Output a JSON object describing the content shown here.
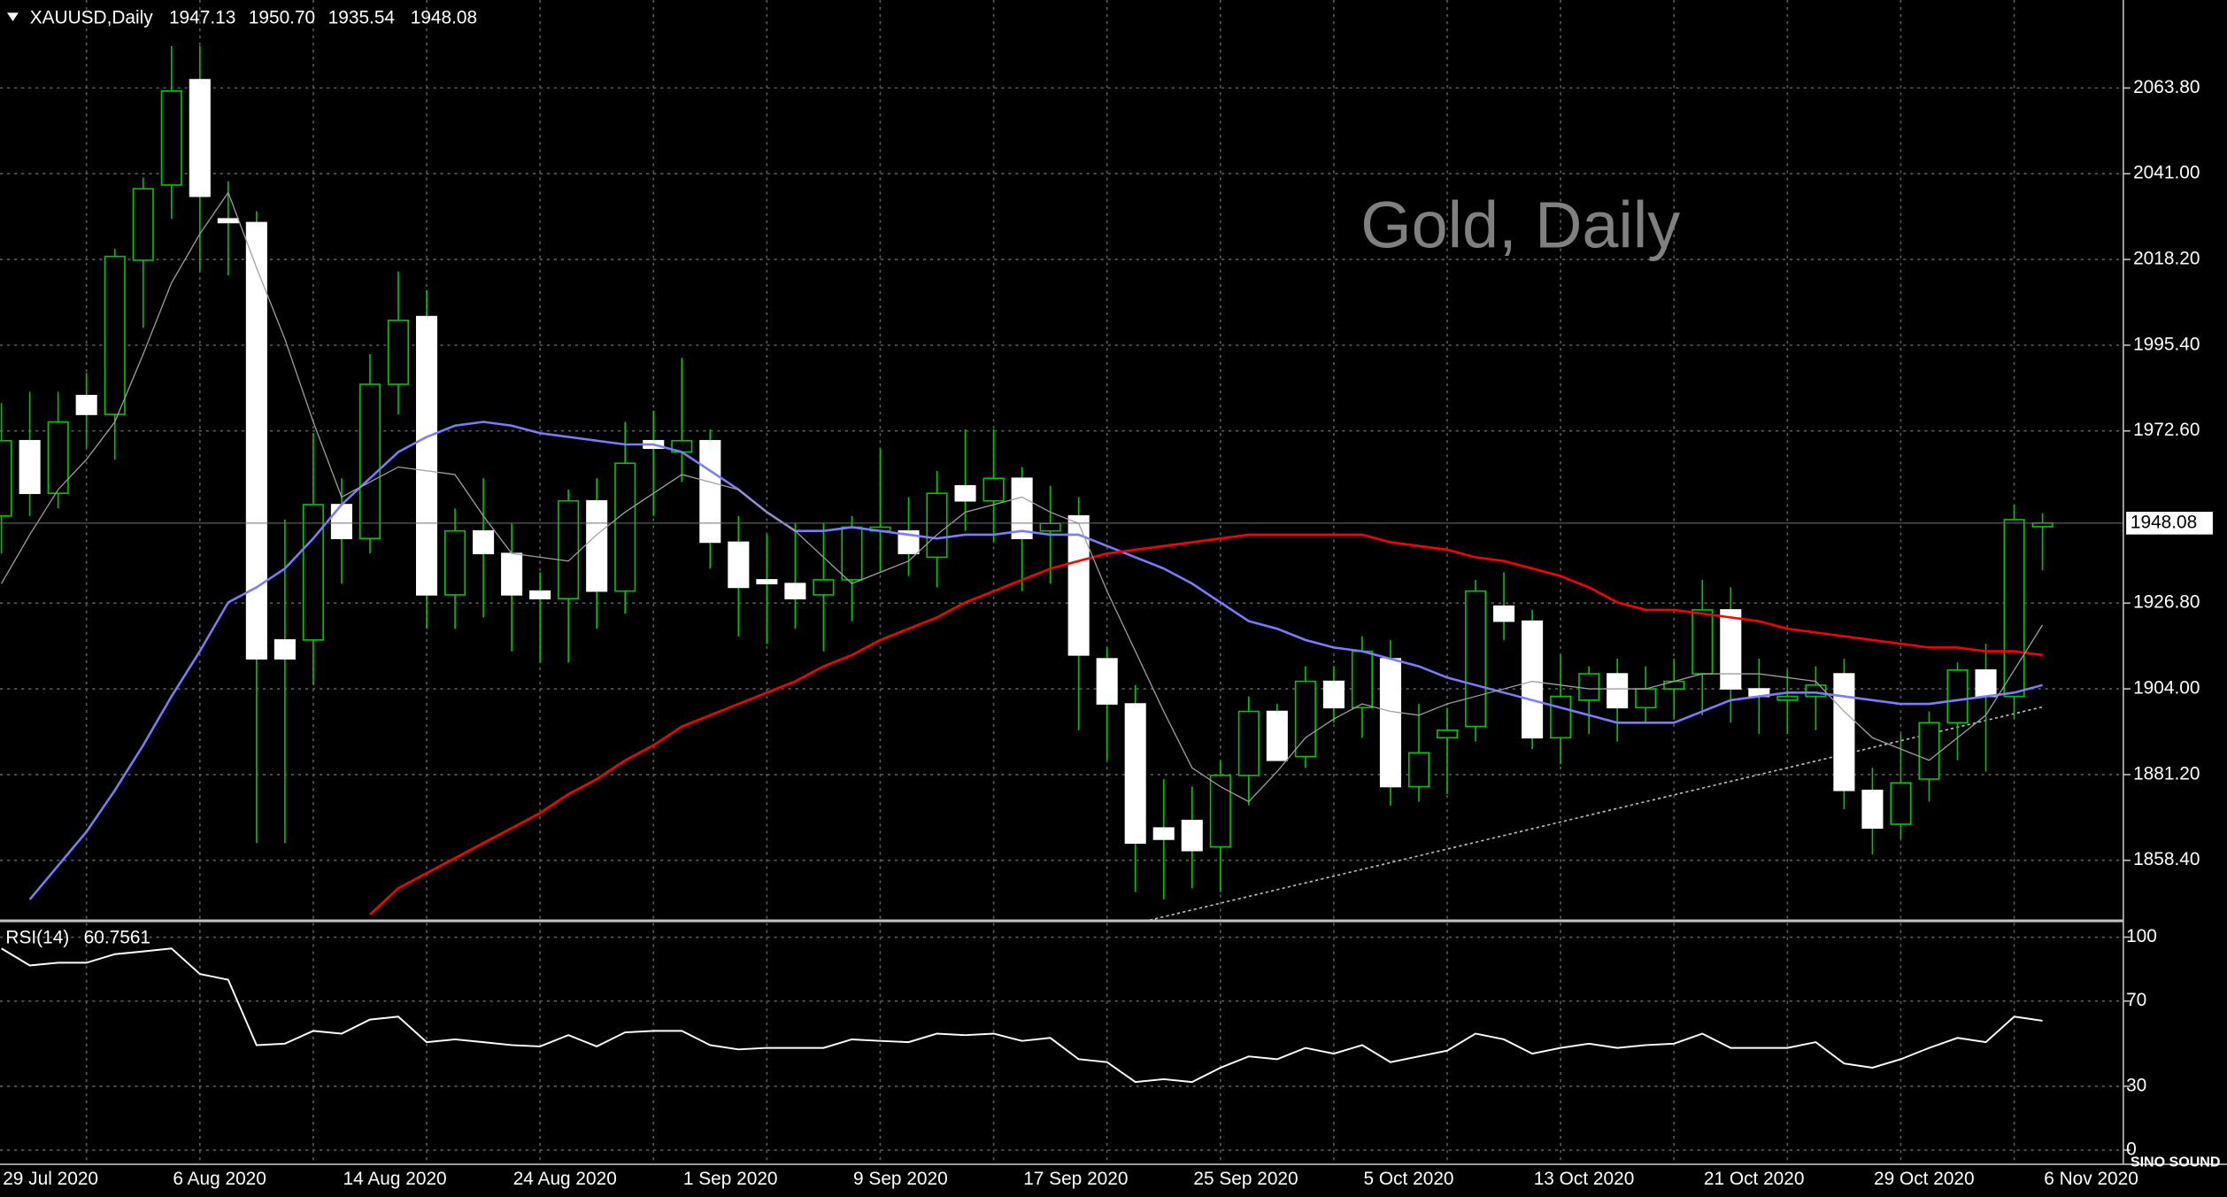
{
  "chart_data": [
    {
      "type": "candlestick",
      "title": "XAUUSD,Daily",
      "ohlc_labels": [
        "1947.13",
        "1950.70",
        "1935.54",
        "1948.08"
      ],
      "watermark": "Gold, Daily",
      "categories": [
        "29 Jul 2020",
        null,
        null,
        null,
        null,
        null,
        "6 Aug 2020",
        null,
        null,
        null,
        null,
        null,
        "14 Aug 2020",
        null,
        null,
        null,
        null,
        null,
        "24 Aug 2020",
        null,
        null,
        null,
        null,
        null,
        "1 Sep 2020",
        null,
        null,
        null,
        null,
        null,
        "9 Sep 2020",
        null,
        null,
        null,
        null,
        null,
        "17 Sep 2020",
        null,
        null,
        null,
        null,
        null,
        "25 Sep 2020",
        null,
        null,
        null,
        null,
        null,
        "5 Oct 2020",
        null,
        null,
        null,
        null,
        null,
        "13 Oct 2020",
        null,
        null,
        null,
        null,
        null,
        "21 Oct 2020",
        null,
        null,
        null,
        null,
        null,
        "29 Oct 2020",
        null,
        null,
        null,
        null,
        null,
        "6 Nov 2020"
      ],
      "open": [
        1950,
        1970,
        1956,
        1982,
        1977,
        2018,
        2038,
        2066,
        2029,
        2028,
        1917,
        1917,
        1953,
        1944,
        1985,
        2003,
        1929,
        1946,
        1940,
        1930,
        1928,
        1954,
        1930,
        1970,
        1967,
        1970,
        1943,
        1933,
        1932,
        1929,
        1933,
        1946,
        1946,
        1939,
        1958,
        1954,
        1960,
        1946,
        1950,
        1912,
        1900,
        1867,
        1869,
        1862,
        1881,
        1898,
        1886,
        1906,
        1899,
        1912,
        1878,
        1891,
        1894,
        1926,
        1922,
        1891,
        1901,
        1908,
        1899,
        1904,
        1908,
        1925,
        1904,
        1901,
        1902,
        1908,
        1877,
        1868,
        1880,
        1895,
        1909,
        1902,
        1947.13
      ],
      "high": [
        1980,
        1983,
        1983,
        1988,
        2021,
        2040,
        2075,
        2075,
        2039,
        2031,
        1949,
        1972,
        1960,
        1993,
        2015,
        2010,
        1952,
        1960,
        1948,
        1935,
        1957,
        1960,
        1975,
        1978,
        1992,
        1973,
        1950,
        1945,
        1948,
        1948,
        1950,
        1968,
        1955,
        1962,
        1973,
        1973,
        1963,
        1958,
        1955,
        1915,
        1905,
        1880,
        1878,
        1885,
        1902,
        1900,
        1910,
        1910,
        1918,
        1917,
        1900,
        1899,
        1933,
        1935,
        1925,
        1913,
        1910,
        1912,
        1910,
        1912,
        1933,
        1931,
        1912,
        1909,
        1910,
        1912,
        1883,
        1892,
        1898,
        1911,
        1916,
        1953,
        1950.7
      ],
      "low": [
        1940,
        1950,
        1952,
        1968,
        1965,
        2000,
        2029,
        2015,
        2014,
        1863,
        1863,
        1905,
        1932,
        1940,
        1977,
        1920,
        1920,
        1923,
        1914,
        1911,
        1911,
        1920,
        1924,
        1950,
        1959,
        1936,
        1918,
        1916,
        1920,
        1914,
        1922,
        1935,
        1934,
        1931,
        1946,
        1943,
        1930,
        1932,
        1893,
        1885,
        1850,
        1848,
        1851,
        1850,
        1873,
        1885,
        1883,
        1895,
        1891,
        1873,
        1874,
        1876,
        1890,
        1917,
        1888,
        1884,
        1892,
        1890,
        1895,
        1896,
        1897,
        1895,
        1892,
        1892,
        1893,
        1872,
        1860,
        1864,
        1874,
        1885,
        1882,
        1896,
        1935.54
      ],
      "close": [
        1970,
        1956,
        1975,
        1977,
        2019,
        2037,
        2063,
        2035,
        2028,
        1912,
        1912,
        1953,
        1944,
        1985,
        2002,
        1929,
        1946,
        1940,
        1929,
        1928,
        1954,
        1930,
        1964,
        1968,
        1970,
        1943,
        1931,
        1932,
        1928,
        1933,
        1947,
        1947,
        1940,
        1956,
        1954,
        1960,
        1944,
        1948,
        1913,
        1900,
        1863,
        1864,
        1861,
        1881,
        1898,
        1885,
        1906,
        1899,
        1914,
        1878,
        1887,
        1893,
        1930,
        1922,
        1891,
        1902,
        1908,
        1899,
        1904,
        1906,
        1925,
        1904,
        1902,
        1902,
        1905,
        1877,
        1867,
        1879,
        1895,
        1909,
        1902,
        1949,
        1948.08
      ],
      "up_color": "#000000",
      "down_color": "#ffffff",
      "wick_color": "#00c800",
      "lines": [
        {
          "color": "#7b7bff",
          "values": [
            null,
            1848,
            1857,
            1866,
            1877,
            1889,
            1902,
            1914,
            1927,
            1931,
            1936,
            1944,
            1953,
            1960,
            1967,
            1971,
            1974,
            1975,
            1974,
            1972,
            1971,
            1970,
            1969,
            1969,
            1967,
            1962,
            1957,
            1951,
            1946,
            1946,
            1947,
            1946,
            1945,
            1944,
            1945,
            1945,
            1946,
            1945,
            1945,
            1942,
            1939,
            1936,
            1932,
            1927,
            1922,
            1920,
            1917,
            1915,
            1914,
            1912,
            1910,
            1907,
            1905,
            1903,
            1901,
            1899,
            1897,
            1895,
            1895,
            1895,
            1898,
            1901,
            1902,
            1903,
            1903,
            1902,
            1901,
            1900,
            1900,
            1901,
            1902,
            1903,
            1905
          ]
        },
        {
          "color": "#ff0000",
          "values": [
            null,
            null,
            null,
            null,
            null,
            null,
            null,
            null,
            null,
            null,
            null,
            null,
            null,
            1844,
            1851,
            1855,
            1859,
            1863,
            1867,
            1871,
            1876,
            1880,
            1885,
            1889,
            1894,
            1897,
            1900,
            1903,
            1906,
            1910,
            1913,
            1917,
            1920,
            1923,
            1927,
            1930,
            1933,
            1936,
            1938,
            1940,
            1941,
            1942,
            1943,
            1944,
            1945,
            1945,
            1945,
            1945,
            1945,
            1943,
            1942,
            1941,
            1939,
            1938,
            1936,
            1934,
            1931,
            1927,
            1925,
            1925,
            1924,
            1923,
            1922,
            1920,
            1919,
            1918,
            1917,
            1916,
            1915,
            1915,
            1914,
            1914,
            1913
          ]
        },
        {
          "color": "#a0a0a0",
          "values": [
            1932,
            1945,
            1957,
            1965,
            1975,
            1993,
            2012,
            2025,
            2036,
            2016,
            1997,
            1975,
            1955,
            1959,
            1963,
            1962,
            1961,
            1950,
            1940,
            1939,
            1938,
            1945,
            1951,
            1956,
            1961,
            1959,
            1957,
            1951,
            1946,
            1939,
            1932,
            1935,
            1938,
            1945,
            1951,
            1953,
            1955,
            1951,
            1948,
            1930,
            1914,
            1898,
            1883,
            1878,
            1874,
            1882,
            1891,
            1896,
            1900,
            1898,
            1897,
            1900,
            1902,
            1904,
            1906,
            1905,
            1904,
            1904,
            1904,
            1906,
            1908,
            1908,
            1908,
            1907,
            1906,
            1898,
            1891,
            1888,
            1885,
            1891,
            1897,
            1909,
            1921
          ]
        }
      ],
      "trendline": {
        "color": "#c0c0c0",
        "x": [
          40.5,
          72
        ],
        "values": [
          1842.5,
          1899.2
        ]
      },
      "ylim": [
        1842.5,
        2087.2
      ],
      "yticks": [
        {
          "value": 1858.4,
          "label": "1858.40"
        },
        {
          "value": 1881.2,
          "label": "1881.20"
        },
        {
          "value": 1904,
          "label": "1904.00"
        },
        {
          "value": 1926.8,
          "label": "1926.80"
        },
        {
          "value": 1972.6,
          "label": "1972.60"
        },
        {
          "value": 1995.4,
          "label": "1995.40"
        },
        {
          "value": 2018.2,
          "label": "2018.20"
        },
        {
          "value": 2041,
          "label": "2041.00"
        },
        {
          "value": 2063.8,
          "label": "2063.80"
        }
      ],
      "grid": true
    },
    {
      "type": "line",
      "title": "RSI(14)",
      "color": "#ffffff",
      "values": [
        94.7,
        86.7,
        88,
        88,
        92,
        93.3,
        94.7,
        82.7,
        80,
        49.3,
        50,
        56,
        54.7,
        61.3,
        62.7,
        50.7,
        52,
        50.7,
        49.3,
        48.7,
        54,
        48.7,
        55.3,
        56,
        56,
        49.3,
        47.3,
        48,
        48,
        48,
        52,
        51.3,
        50.7,
        54.7,
        54,
        54.7,
        51.3,
        52.7,
        42.7,
        41.3,
        32,
        33.3,
        32,
        38.7,
        44,
        42.7,
        48,
        45.3,
        49.3,
        41.3,
        44,
        46.7,
        54.7,
        52,
        45.3,
        48,
        50,
        48,
        49.3,
        50,
        54.7,
        48,
        48,
        48,
        50.7,
        40.7,
        38.7,
        42.7,
        48,
        52.7,
        50.7,
        62.7,
        60.7561
      ],
      "ylim": [
        -6.67,
        106.67
      ],
      "yticks": [
        100,
        70,
        30,
        0
      ],
      "grid": true
    }
  ],
  "logo": "SINO SOUND"
}
